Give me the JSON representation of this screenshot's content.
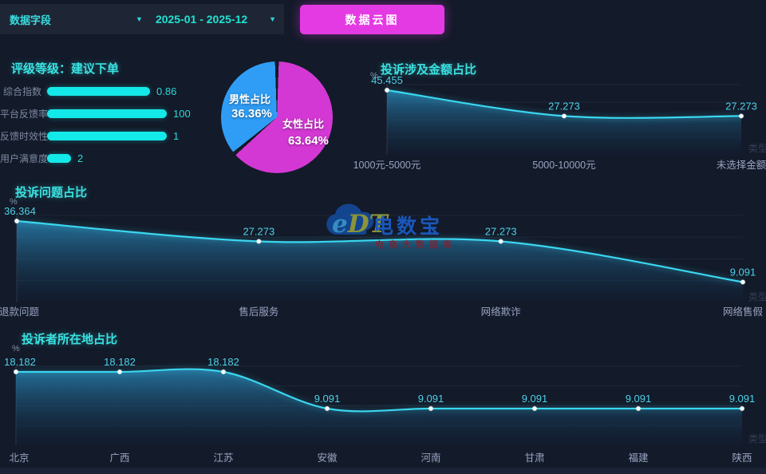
{
  "topbar": {
    "field_dropdown_label": "数据字段",
    "date_dropdown_label": "2025-01 - 2025-12",
    "cloud_button_label": "数据云图",
    "caret_glyph": "▼",
    "accent_color": "#e43ae4"
  },
  "rating": {
    "title": "评级等级：建议下单",
    "bar_color": "#14e9e9",
    "bars": [
      {
        "label": "综合指数",
        "value": "0.86",
        "fraction": 0.86
      },
      {
        "label": "平台反馈率",
        "value": "100",
        "fraction": 1
      },
      {
        "label": "反馈时效性",
        "value": "1",
        "fraction": 1
      },
      {
        "label": "用户满意度",
        "value": "2",
        "fraction": 0.2
      }
    ]
  },
  "watermark": {
    "logo_text_e": "e",
    "logo_text_dt": "DT",
    "brand": "电数宝",
    "subtitle": "电商大数据库"
  },
  "axis_name_clipped": "类型",
  "chart_data": [
    {
      "type": "pie",
      "name": "gender-share",
      "direction": "clockwise",
      "start_angle_deg": 0,
      "slices": [
        {
          "label": "女性占比",
          "value": 63.64,
          "percent_label": "63.64%",
          "color": "#d438d4"
        },
        {
          "label": "男性占比",
          "value": 36.36,
          "percent_label": "36.36%",
          "color": "#2f9df5"
        }
      ]
    },
    {
      "type": "area",
      "title": "投诉涉及金额占比",
      "ylabel": "%",
      "categories": [
        "1000元-5000元",
        "5000-10000元",
        "未选择金额"
      ],
      "values": [
        45.455,
        27.273,
        27.273
      ],
      "ylim": [
        0,
        45.455
      ],
      "line_color": "#3ad7f0",
      "grid": true,
      "legend": "none"
    },
    {
      "type": "area",
      "title": "投诉问题占比",
      "ylabel": "%",
      "categories": [
        "退款问题",
        "售后服务",
        "网络欺诈",
        "网络售假"
      ],
      "values": [
        36.364,
        27.273,
        27.273,
        9.091
      ],
      "ylim": [
        0,
        36.364
      ],
      "line_color": "#3ad7f0",
      "grid": true,
      "legend": "none"
    },
    {
      "type": "area",
      "title": "投诉者所在地占比",
      "ylabel": "%",
      "categories": [
        "北京",
        "广西",
        "江苏",
        "安徽",
        "河南",
        "甘肃",
        "福建",
        "陕西"
      ],
      "values": [
        18.182,
        18.182,
        18.182,
        9.091,
        9.091,
        9.091,
        9.091,
        9.091
      ],
      "ylim": [
        0,
        18.182
      ],
      "line_color": "#3ad7f0",
      "grid": true,
      "legend": "none"
    }
  ]
}
